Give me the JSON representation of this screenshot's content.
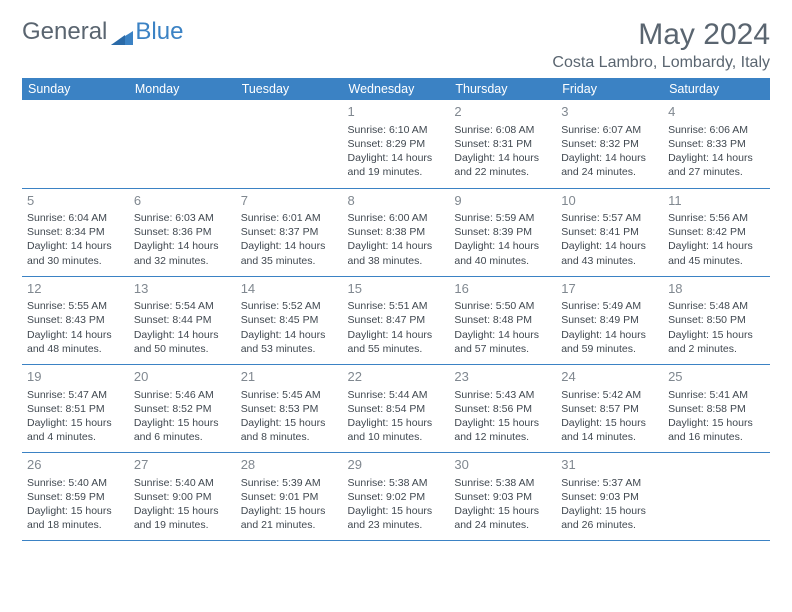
{
  "logo": {
    "text1": "General",
    "text2": "Blue"
  },
  "title": "May 2024",
  "location": "Costa Lambro, Lombardy, Italy",
  "colors": {
    "header_bg": "#3b82c4",
    "header_fg": "#ffffff",
    "border": "#3b82c4",
    "text": "#404850",
    "daynum": "#808890",
    "logo_gray": "#5a6570",
    "logo_blue": "#3b82c4"
  },
  "daysOfWeek": [
    "Sunday",
    "Monday",
    "Tuesday",
    "Wednesday",
    "Thursday",
    "Friday",
    "Saturday"
  ],
  "weeks": [
    [
      null,
      null,
      null,
      {
        "n": "1",
        "sr": "6:10 AM",
        "ss": "8:29 PM",
        "dl": "14 hours and 19 minutes."
      },
      {
        "n": "2",
        "sr": "6:08 AM",
        "ss": "8:31 PM",
        "dl": "14 hours and 22 minutes."
      },
      {
        "n": "3",
        "sr": "6:07 AM",
        "ss": "8:32 PM",
        "dl": "14 hours and 24 minutes."
      },
      {
        "n": "4",
        "sr": "6:06 AM",
        "ss": "8:33 PM",
        "dl": "14 hours and 27 minutes."
      }
    ],
    [
      {
        "n": "5",
        "sr": "6:04 AM",
        "ss": "8:34 PM",
        "dl": "14 hours and 30 minutes."
      },
      {
        "n": "6",
        "sr": "6:03 AM",
        "ss": "8:36 PM",
        "dl": "14 hours and 32 minutes."
      },
      {
        "n": "7",
        "sr": "6:01 AM",
        "ss": "8:37 PM",
        "dl": "14 hours and 35 minutes."
      },
      {
        "n": "8",
        "sr": "6:00 AM",
        "ss": "8:38 PM",
        "dl": "14 hours and 38 minutes."
      },
      {
        "n": "9",
        "sr": "5:59 AM",
        "ss": "8:39 PM",
        "dl": "14 hours and 40 minutes."
      },
      {
        "n": "10",
        "sr": "5:57 AM",
        "ss": "8:41 PM",
        "dl": "14 hours and 43 minutes."
      },
      {
        "n": "11",
        "sr": "5:56 AM",
        "ss": "8:42 PM",
        "dl": "14 hours and 45 minutes."
      }
    ],
    [
      {
        "n": "12",
        "sr": "5:55 AM",
        "ss": "8:43 PM",
        "dl": "14 hours and 48 minutes."
      },
      {
        "n": "13",
        "sr": "5:54 AM",
        "ss": "8:44 PM",
        "dl": "14 hours and 50 minutes."
      },
      {
        "n": "14",
        "sr": "5:52 AM",
        "ss": "8:45 PM",
        "dl": "14 hours and 53 minutes."
      },
      {
        "n": "15",
        "sr": "5:51 AM",
        "ss": "8:47 PM",
        "dl": "14 hours and 55 minutes."
      },
      {
        "n": "16",
        "sr": "5:50 AM",
        "ss": "8:48 PM",
        "dl": "14 hours and 57 minutes."
      },
      {
        "n": "17",
        "sr": "5:49 AM",
        "ss": "8:49 PM",
        "dl": "14 hours and 59 minutes."
      },
      {
        "n": "18",
        "sr": "5:48 AM",
        "ss": "8:50 PM",
        "dl": "15 hours and 2 minutes."
      }
    ],
    [
      {
        "n": "19",
        "sr": "5:47 AM",
        "ss": "8:51 PM",
        "dl": "15 hours and 4 minutes."
      },
      {
        "n": "20",
        "sr": "5:46 AM",
        "ss": "8:52 PM",
        "dl": "15 hours and 6 minutes."
      },
      {
        "n": "21",
        "sr": "5:45 AM",
        "ss": "8:53 PM",
        "dl": "15 hours and 8 minutes."
      },
      {
        "n": "22",
        "sr": "5:44 AM",
        "ss": "8:54 PM",
        "dl": "15 hours and 10 minutes."
      },
      {
        "n": "23",
        "sr": "5:43 AM",
        "ss": "8:56 PM",
        "dl": "15 hours and 12 minutes."
      },
      {
        "n": "24",
        "sr": "5:42 AM",
        "ss": "8:57 PM",
        "dl": "15 hours and 14 minutes."
      },
      {
        "n": "25",
        "sr": "5:41 AM",
        "ss": "8:58 PM",
        "dl": "15 hours and 16 minutes."
      }
    ],
    [
      {
        "n": "26",
        "sr": "5:40 AM",
        "ss": "8:59 PM",
        "dl": "15 hours and 18 minutes."
      },
      {
        "n": "27",
        "sr": "5:40 AM",
        "ss": "9:00 PM",
        "dl": "15 hours and 19 minutes."
      },
      {
        "n": "28",
        "sr": "5:39 AM",
        "ss": "9:01 PM",
        "dl": "15 hours and 21 minutes."
      },
      {
        "n": "29",
        "sr": "5:38 AM",
        "ss": "9:02 PM",
        "dl": "15 hours and 23 minutes."
      },
      {
        "n": "30",
        "sr": "5:38 AM",
        "ss": "9:03 PM",
        "dl": "15 hours and 24 minutes."
      },
      {
        "n": "31",
        "sr": "5:37 AM",
        "ss": "9:03 PM",
        "dl": "15 hours and 26 minutes."
      },
      null
    ]
  ],
  "labels": {
    "sunrise": "Sunrise: ",
    "sunset": "Sunset: ",
    "daylight": "Daylight: "
  }
}
